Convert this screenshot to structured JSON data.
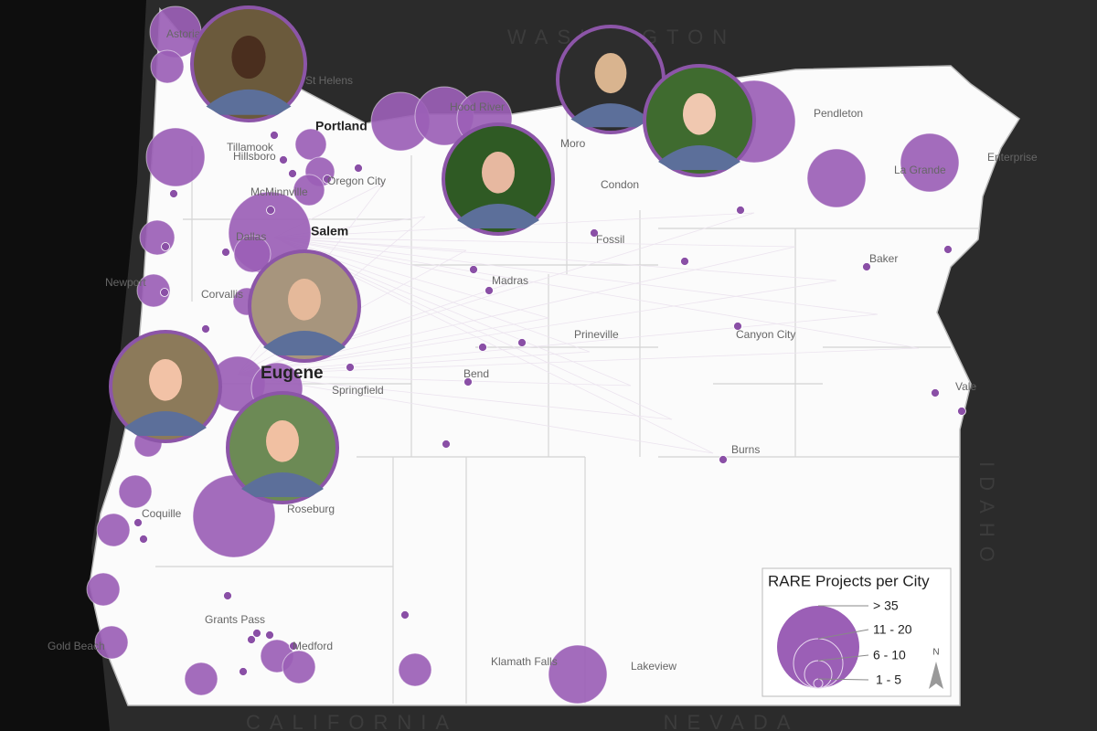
{
  "map": {
    "states": [
      "WASHINGTON",
      "IDAHO",
      "CALIFORNIA",
      "NEVADA"
    ],
    "cities": [
      "Astoria",
      "St Helens",
      "Portland",
      "Hood River",
      "Moro",
      "Pendleton",
      "Enterprise",
      "Tillamook",
      "Hillsboro",
      "Oregon City",
      "McMinnville",
      "Condon",
      "La Grande",
      "Salem",
      "Dallas",
      "Fossil",
      "Newport",
      "Corvallis",
      "Madras",
      "Baker",
      "Prineville",
      "Canyon City",
      "Eugene",
      "Springfield",
      "Bend",
      "Vale",
      "Burns",
      "Coquille",
      "Roseburg",
      "Grants Pass",
      "Medford",
      "Gold Beach",
      "Klamath Falls",
      "Lakeview"
    ],
    "legend": {
      "title": "RARE Projects per City",
      "entries": [
        "> 35",
        "11 - 20",
        "6 - 10",
        "1 - 5"
      ]
    },
    "north_label": "N"
  }
}
